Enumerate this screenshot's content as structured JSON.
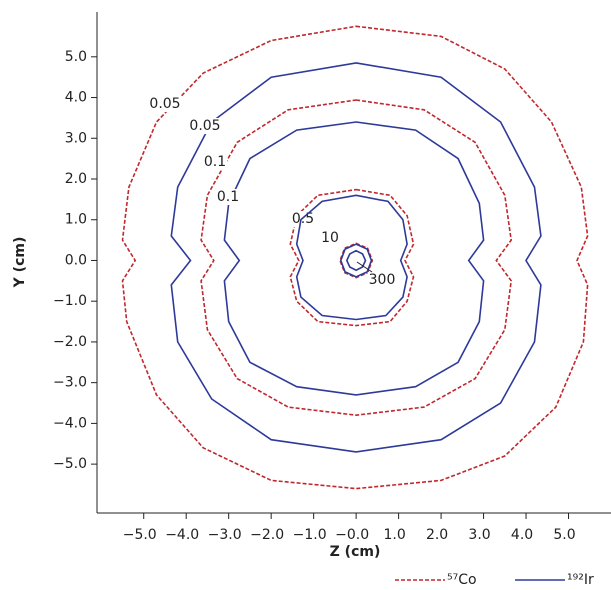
{
  "chart_data": {
    "type": "contour",
    "xlabel": "Z (cm)",
    "ylabel": "Y (cm)",
    "xlim": [
      -6.1,
      6.0
    ],
    "ylim": [
      -6.2,
      6.1
    ],
    "xticks": [
      {
        "value": -5,
        "label": "−5.0"
      },
      {
        "value": -4,
        "label": "−4.0"
      },
      {
        "value": -3,
        "label": "−3.0"
      },
      {
        "value": -2,
        "label": "−2.0"
      },
      {
        "value": -1,
        "label": "−1.0"
      },
      {
        "value": 0,
        "label": "−0.0"
      },
      {
        "value": 1,
        "label": "1.0"
      },
      {
        "value": 2,
        "label": "2.0"
      },
      {
        "value": 3,
        "label": "3.0"
      },
      {
        "value": 4,
        "label": "4.0"
      },
      {
        "value": 5,
        "label": "5.0"
      }
    ],
    "yticks": [
      {
        "value": -5,
        "label": "−5.0"
      },
      {
        "value": -4,
        "label": "−4.0"
      },
      {
        "value": -3,
        "label": "−3.0"
      },
      {
        "value": -2,
        "label": "−2.0"
      },
      {
        "value": -1,
        "label": "−1.0"
      },
      {
        "value": 0,
        "label": "0.0"
      },
      {
        "value": 1,
        "label": "1.0"
      },
      {
        "value": 2,
        "label": "2.0"
      },
      {
        "value": 3,
        "label": "3.0"
      },
      {
        "value": 4,
        "label": "4.0"
      },
      {
        "value": 5,
        "label": "5.0"
      }
    ],
    "legend": "bottom",
    "series": [
      {
        "name": "⁵⁷Co",
        "color": "#c0282d",
        "line_style": "dashed",
        "contours": [
          {
            "level": 0.05,
            "x": [
              0,
              2,
              3.5,
              4.6,
              5.3,
              5.45,
              5.2,
              5.45,
              5.35,
              4.7,
              3.5,
              2,
              0,
              -2,
              -3.6,
              -4.7,
              -5.4,
              -5.5,
              -5.2,
              -5.5,
              -5.35,
              -4.7,
              -3.6,
              -2
            ],
            "y": [
              5.75,
              5.5,
              4.7,
              3.4,
              1.8,
              0.6,
              0,
              -0.6,
              -2,
              -3.6,
              -4.8,
              -5.4,
              -5.6,
              -5.4,
              -4.6,
              -3.3,
              -1.5,
              -0.5,
              0,
              0.5,
              1.8,
              3.4,
              4.6,
              5.4
            ]
          },
          {
            "level": 0.1,
            "x": [
              0,
              1.6,
              2.8,
              3.5,
              3.65,
              3.3,
              3.65,
              3.5,
              2.8,
              1.6,
              0,
              -1.6,
              -2.8,
              -3.5,
              -3.65,
              -3.35,
              -3.65,
              -3.5,
              -2.8,
              -1.6
            ],
            "y": [
              3.94,
              3.7,
              2.9,
              1.6,
              0.5,
              0,
              -0.5,
              -1.7,
              -2.9,
              -3.6,
              -3.8,
              -3.6,
              -2.9,
              -1.7,
              -0.5,
              0,
              0.5,
              1.6,
              2.9,
              3.7
            ]
          },
          {
            "level": 0.5,
            "x": [
              0,
              0.8,
              1.2,
              1.35,
              1.15,
              1.35,
              1.2,
              0.8,
              0,
              -0.9,
              -1.4,
              -1.55,
              -1.35,
              -1.55,
              -1.4,
              -0.9
            ],
            "y": [
              1.74,
              1.6,
              1.1,
              0.4,
              0,
              -0.4,
              -1.0,
              -1.5,
              -1.6,
              -1.5,
              -1.0,
              -0.4,
              0,
              0.4,
              1.1,
              1.6
            ]
          },
          {
            "x": [
              0,
              0.27,
              0.38,
              0.27,
              0,
              -0.27,
              -0.38,
              -0.27
            ],
            "y": [
              0.42,
              0.3,
              0,
              -0.3,
              -0.42,
              -0.3,
              0,
              0.3
            ]
          }
        ]
      },
      {
        "name": "¹⁹²Ir",
        "color": "#2e3a9a",
        "line_style": "solid",
        "contours": [
          {
            "level": 0.05,
            "x": [
              0,
              2,
              3.4,
              4.2,
              4.35,
              4.0,
              4.35,
              4.2,
              3.4,
              2,
              0,
              -2,
              -3.4,
              -4.2,
              -4.35,
              -3.9,
              -4.35,
              -4.2,
              -3.4,
              -2
            ],
            "y": [
              4.85,
              4.5,
              3.4,
              1.8,
              0.6,
              0,
              -0.6,
              -2,
              -3.5,
              -4.4,
              -4.7,
              -4.4,
              -3.4,
              -2,
              -0.6,
              0,
              0.6,
              1.8,
              3.4,
              4.5
            ]
          },
          {
            "level": 0.1,
            "x": [
              0,
              1.4,
              2.4,
              2.9,
              3.0,
              2.65,
              3.0,
              2.9,
              2.4,
              1.4,
              0,
              -1.4,
              -2.5,
              -3.0,
              -3.1,
              -2.75,
              -3.1,
              -3.0,
              -2.5,
              -1.4
            ],
            "y": [
              3.4,
              3.2,
              2.5,
              1.4,
              0.5,
              0,
              -0.5,
              -1.5,
              -2.5,
              -3.1,
              -3.3,
              -3.1,
              -2.5,
              -1.5,
              -0.5,
              0,
              0.5,
              1.4,
              2.5,
              3.2
            ]
          },
          {
            "x": [
              0,
              0.75,
              1.1,
              1.2,
              1.05,
              1.2,
              1.1,
              0.7,
              0,
              -0.8,
              -1.3,
              -1.4,
              -1.25,
              -1.4,
              -1.3,
              -0.8
            ],
            "y": [
              1.6,
              1.45,
              1.0,
              0.4,
              0,
              -0.4,
              -0.9,
              -1.35,
              -1.45,
              -1.35,
              -0.9,
              -0.4,
              0,
              0.4,
              1.0,
              1.45
            ]
          },
          {
            "level": 10,
            "x": [
              0,
              0.26,
              0.36,
              0.26,
              0,
              -0.26,
              -0.36,
              -0.26
            ],
            "y": [
              0.4,
              0.28,
              0,
              -0.28,
              -0.4,
              -0.28,
              0,
              0.28
            ]
          },
          {
            "level": 300,
            "x": [
              0,
              0.15,
              0.22,
              0.15,
              0,
              -0.15,
              -0.22,
              -0.15
            ],
            "y": [
              0.24,
              0.16,
              0,
              -0.16,
              -0.24,
              -0.16,
              0,
              0.16
            ]
          }
        ]
      }
    ]
  }
}
